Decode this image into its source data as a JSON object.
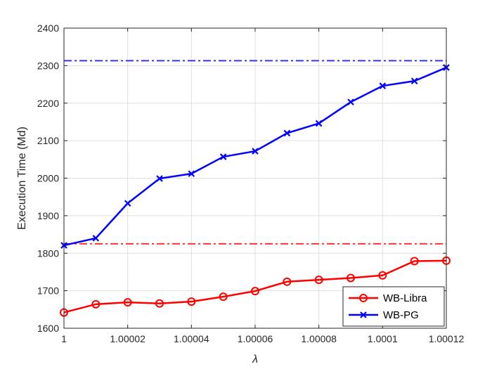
{
  "chart_data": {
    "type": "line",
    "xlabel": "λ",
    "ylabel": "Execution Time (Md)",
    "xlim": [
      1,
      1.00012
    ],
    "ylim": [
      1600,
      2400
    ],
    "xticks": [
      1,
      1.00002,
      1.00004,
      1.00006,
      1.00008,
      1.0001,
      1.00012
    ],
    "xtick_labels": [
      "1",
      "1.00002",
      "1.00004",
      "1.00006",
      "1.00008",
      "1.0001",
      "1.00012"
    ],
    "yticks": [
      1600,
      1700,
      1800,
      1900,
      2000,
      2100,
      2200,
      2300,
      2400
    ],
    "grid": true,
    "legend_position": "bottom-right",
    "x": [
      1,
      1.00001,
      1.00002,
      1.00003,
      1.00004,
      1.00005,
      1.00006,
      1.00007,
      1.00008,
      1.00009,
      1.0001,
      1.00011,
      1.00012
    ],
    "series": [
      {
        "name": "WB-Libra",
        "color": "#ff0000",
        "marker": "circle",
        "values": [
          1642,
          1664,
          1669,
          1666,
          1671,
          1684,
          1699,
          1724,
          1729,
          1734,
          1741,
          1779,
          1780
        ]
      },
      {
        "name": "WB-PG",
        "color": "#0000ff",
        "marker": "x",
        "values": [
          1821,
          1840,
          1933,
          1999,
          2012,
          2057,
          2072,
          2120,
          2146,
          2203,
          2246,
          2259,
          2295
        ]
      }
    ],
    "reference_lines": [
      {
        "y": 1825,
        "color": "#ff3333",
        "style": "dash-dot"
      },
      {
        "y": 2313,
        "color": "#3333ff",
        "style": "dash-dot"
      }
    ]
  }
}
